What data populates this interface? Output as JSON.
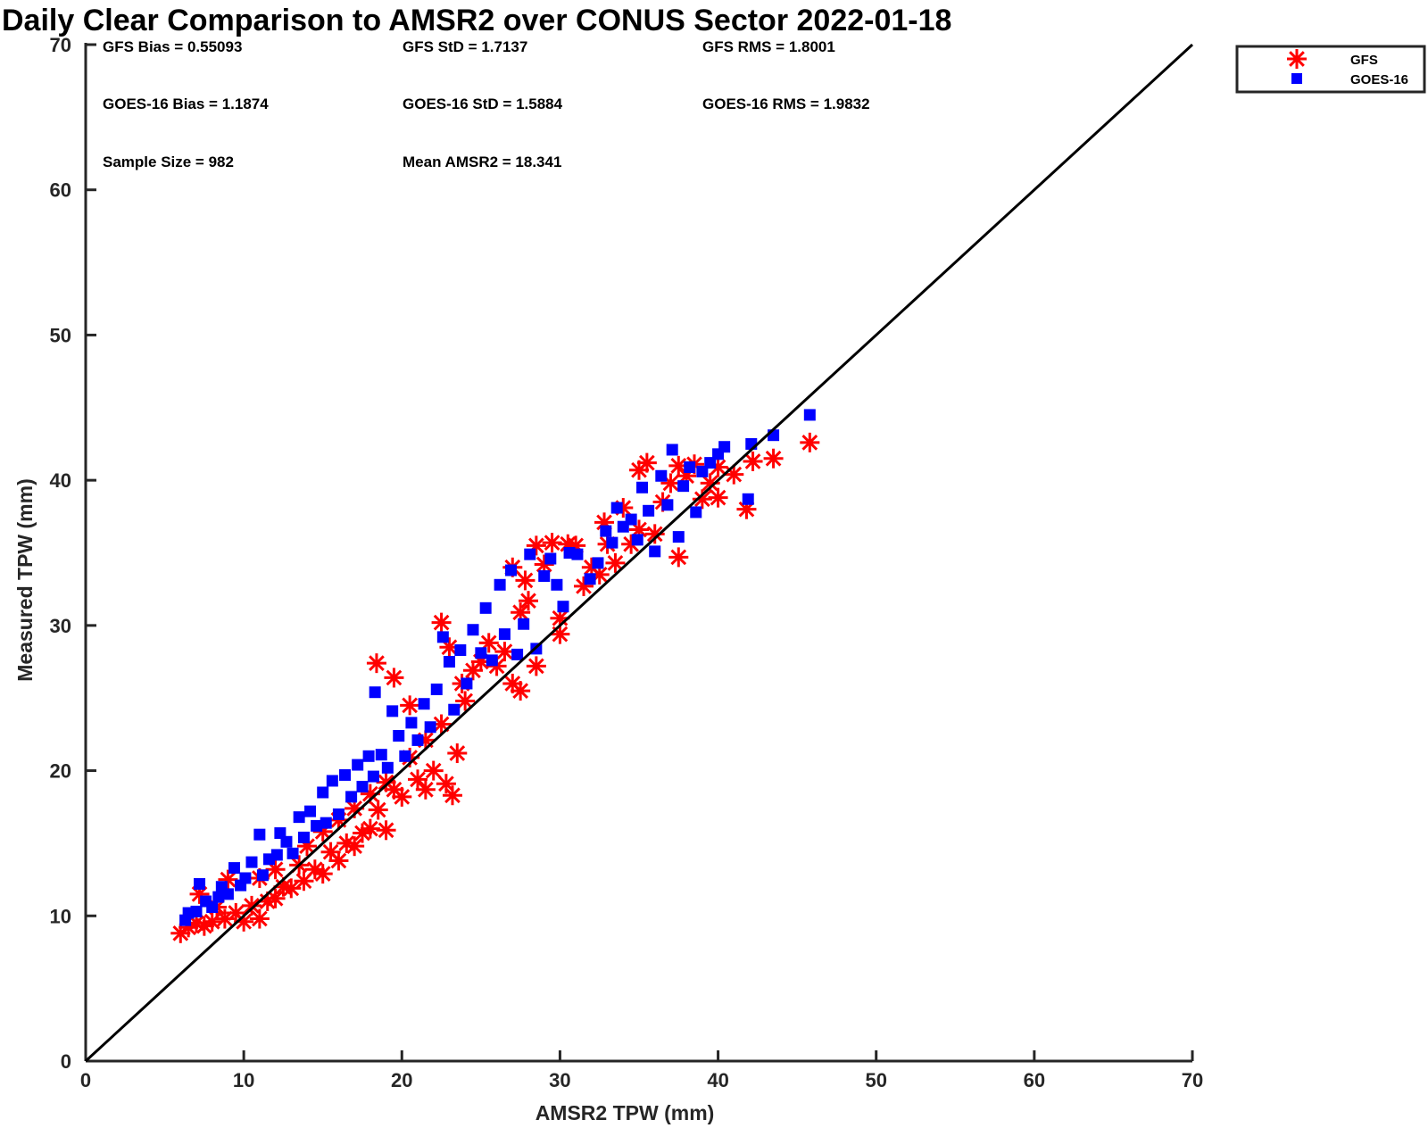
{
  "chart_data": {
    "type": "scatter",
    "title": "Daily Clear Comparison to AMSR2 over CONUS Sector 2022-01-18",
    "xlabel": "AMSR2 TPW (mm)",
    "ylabel": "Measured TPW (mm)",
    "xlim": [
      0,
      70
    ],
    "ylim": [
      0,
      70
    ],
    "xticks": [
      "0",
      "10",
      "20",
      "30",
      "40",
      "50",
      "60",
      "70"
    ],
    "yticks": [
      "0",
      "10",
      "20",
      "30",
      "40",
      "50",
      "60",
      "70"
    ],
    "grid": false,
    "legend_position": "outside-top-right",
    "reference_line": {
      "from": [
        0,
        0
      ],
      "to": [
        70,
        70
      ],
      "color": "#000000"
    },
    "stats": [
      [
        "GFS Bias = 0.55093",
        "GFS StD = 1.7137",
        "GFS RMS = 1.8001"
      ],
      [
        "GOES-16 Bias = 1.1874",
        "GOES-16 StD = 1.5884",
        "GOES-16 RMS = 1.9832"
      ],
      [
        "Sample Size = 982",
        "Mean AMSR2 = 18.341",
        ""
      ]
    ],
    "series": [
      {
        "name": "GFS",
        "marker": "asterisk",
        "color": "#ff0000",
        "points": [
          [
            6.0,
            8.8
          ],
          [
            6.5,
            9.2
          ],
          [
            7.0,
            9.5
          ],
          [
            7.2,
            11.5
          ],
          [
            7.5,
            9.3
          ],
          [
            8.0,
            9.6
          ],
          [
            8.3,
            10.6
          ],
          [
            8.8,
            9.8
          ],
          [
            9.0,
            12.5
          ],
          [
            9.5,
            10.2
          ],
          [
            10.0,
            9.6
          ],
          [
            10.5,
            10.7
          ],
          [
            11.0,
            9.8
          ],
          [
            11.0,
            12.6
          ],
          [
            11.5,
            11.0
          ],
          [
            12.0,
            11.2
          ],
          [
            12.0,
            13.2
          ],
          [
            12.5,
            12.0
          ],
          [
            13.0,
            11.9
          ],
          [
            13.5,
            13.5
          ],
          [
            13.8,
            12.4
          ],
          [
            14.0,
            14.8
          ],
          [
            14.5,
            13.2
          ],
          [
            15.0,
            12.9
          ],
          [
            15.0,
            15.8
          ],
          [
            15.5,
            14.4
          ],
          [
            16.0,
            13.8
          ],
          [
            16.0,
            16.6
          ],
          [
            16.5,
            15.0
          ],
          [
            17.0,
            14.8
          ],
          [
            17.0,
            17.4
          ],
          [
            17.5,
            15.7
          ],
          [
            18.0,
            16.0
          ],
          [
            18.0,
            18.4
          ],
          [
            18.5,
            17.3
          ],
          [
            18.4,
            27.4
          ],
          [
            19.0,
            15.9
          ],
          [
            19.0,
            19.2
          ],
          [
            19.5,
            26.4
          ],
          [
            19.5,
            18.7
          ],
          [
            20.0,
            18.2
          ],
          [
            20.5,
            24.5
          ],
          [
            20.5,
            20.9
          ],
          [
            21.0,
            19.4
          ],
          [
            21.5,
            18.7
          ],
          [
            21.5,
            22.1
          ],
          [
            22.0,
            20.0
          ],
          [
            22.5,
            30.2
          ],
          [
            22.5,
            23.2
          ],
          [
            22.8,
            19.1
          ],
          [
            23.0,
            28.5
          ],
          [
            23.2,
            18.3
          ],
          [
            23.5,
            21.2
          ],
          [
            23.8,
            26.0
          ],
          [
            24.0,
            24.8
          ],
          [
            24.5,
            26.9
          ],
          [
            25.0,
            27.5
          ],
          [
            25.5,
            28.8
          ],
          [
            26.0,
            27.2
          ],
          [
            26.5,
            28.2
          ],
          [
            27.0,
            34.0
          ],
          [
            27.0,
            26.0
          ],
          [
            27.5,
            25.5
          ],
          [
            27.5,
            30.9
          ],
          [
            27.8,
            33.1
          ],
          [
            28.0,
            31.7
          ],
          [
            28.5,
            27.2
          ],
          [
            28.5,
            35.5
          ],
          [
            29.0,
            34.2
          ],
          [
            29.5,
            35.7
          ],
          [
            30.0,
            29.4
          ],
          [
            30.0,
            30.5
          ],
          [
            30.5,
            35.6
          ],
          [
            31.0,
            35.5
          ],
          [
            31.5,
            32.7
          ],
          [
            32.0,
            34.0
          ],
          [
            32.5,
            33.5
          ],
          [
            32.8,
            37.1
          ],
          [
            33.0,
            35.6
          ],
          [
            33.5,
            34.3
          ],
          [
            34.0,
            38.1
          ],
          [
            34.5,
            35.6
          ],
          [
            35.0,
            40.7
          ],
          [
            35.0,
            36.6
          ],
          [
            35.5,
            41.2
          ],
          [
            36.0,
            36.3
          ],
          [
            36.5,
            38.5
          ],
          [
            37.0,
            39.8
          ],
          [
            37.5,
            34.7
          ],
          [
            37.5,
            41.0
          ],
          [
            38.0,
            40.3
          ],
          [
            38.5,
            41.1
          ],
          [
            39.0,
            38.7
          ],
          [
            39.5,
            39.8
          ],
          [
            40.0,
            38.8
          ],
          [
            40.0,
            40.9
          ],
          [
            41.0,
            40.4
          ],
          [
            41.8,
            38.0
          ],
          [
            42.2,
            41.3
          ],
          [
            43.5,
            41.5
          ],
          [
            45.8,
            42.6
          ]
        ]
      },
      {
        "name": "GOES-16",
        "marker": "square",
        "color": "#0000ff",
        "points": [
          [
            6.3,
            9.7
          ],
          [
            6.5,
            10.2
          ],
          [
            7.0,
            10.3
          ],
          [
            7.2,
            12.2
          ],
          [
            7.6,
            11.0
          ],
          [
            8.0,
            10.6
          ],
          [
            8.4,
            11.3
          ],
          [
            8.6,
            12.0
          ],
          [
            9.0,
            11.5
          ],
          [
            9.4,
            13.3
          ],
          [
            9.8,
            12.1
          ],
          [
            10.1,
            12.6
          ],
          [
            10.5,
            13.7
          ],
          [
            11.0,
            15.6
          ],
          [
            11.2,
            12.8
          ],
          [
            11.6,
            13.9
          ],
          [
            12.1,
            14.2
          ],
          [
            12.3,
            15.7
          ],
          [
            12.7,
            15.1
          ],
          [
            13.1,
            14.3
          ],
          [
            13.5,
            16.8
          ],
          [
            13.8,
            15.4
          ],
          [
            14.2,
            17.2
          ],
          [
            14.6,
            16.2
          ],
          [
            15.0,
            18.5
          ],
          [
            15.2,
            16.4
          ],
          [
            15.6,
            19.3
          ],
          [
            16.0,
            17.0
          ],
          [
            16.4,
            19.7
          ],
          [
            16.8,
            18.2
          ],
          [
            17.2,
            20.4
          ],
          [
            17.5,
            18.9
          ],
          [
            17.9,
            21.0
          ],
          [
            18.2,
            19.6
          ],
          [
            18.3,
            25.4
          ],
          [
            18.7,
            21.1
          ],
          [
            19.1,
            20.2
          ],
          [
            19.4,
            24.1
          ],
          [
            19.8,
            22.4
          ],
          [
            20.2,
            21.0
          ],
          [
            20.6,
            23.3
          ],
          [
            21.0,
            22.1
          ],
          [
            21.4,
            24.6
          ],
          [
            21.8,
            23.0
          ],
          [
            22.2,
            25.6
          ],
          [
            22.6,
            29.2
          ],
          [
            23.0,
            27.5
          ],
          [
            23.3,
            24.2
          ],
          [
            23.7,
            28.3
          ],
          [
            24.1,
            26.0
          ],
          [
            24.5,
            29.7
          ],
          [
            25.0,
            28.1
          ],
          [
            25.3,
            31.2
          ],
          [
            25.7,
            27.6
          ],
          [
            26.2,
            32.8
          ],
          [
            26.5,
            29.4
          ],
          [
            26.9,
            33.8
          ],
          [
            27.3,
            28.0
          ],
          [
            27.7,
            30.1
          ],
          [
            28.1,
            34.9
          ],
          [
            28.5,
            28.4
          ],
          [
            29.0,
            33.4
          ],
          [
            29.4,
            34.6
          ],
          [
            29.8,
            32.8
          ],
          [
            30.2,
            31.3
          ],
          [
            30.6,
            35.0
          ],
          [
            31.1,
            34.9
          ],
          [
            31.9,
            33.2
          ],
          [
            32.4,
            34.3
          ],
          [
            32.9,
            36.5
          ],
          [
            33.3,
            35.7
          ],
          [
            33.6,
            38.1
          ],
          [
            34.0,
            36.8
          ],
          [
            34.5,
            37.3
          ],
          [
            34.9,
            35.9
          ],
          [
            35.2,
            39.5
          ],
          [
            35.6,
            37.9
          ],
          [
            36.0,
            35.1
          ],
          [
            36.4,
            40.3
          ],
          [
            36.8,
            38.3
          ],
          [
            37.1,
            42.1
          ],
          [
            37.5,
            36.1
          ],
          [
            37.8,
            39.6
          ],
          [
            38.2,
            40.9
          ],
          [
            38.6,
            37.8
          ],
          [
            39.0,
            40.6
          ],
          [
            39.5,
            41.2
          ],
          [
            40.0,
            41.8
          ],
          [
            40.4,
            42.3
          ],
          [
            41.9,
            38.7
          ],
          [
            42.1,
            42.5
          ],
          [
            43.5,
            43.1
          ],
          [
            45.8,
            44.5
          ]
        ]
      }
    ]
  }
}
